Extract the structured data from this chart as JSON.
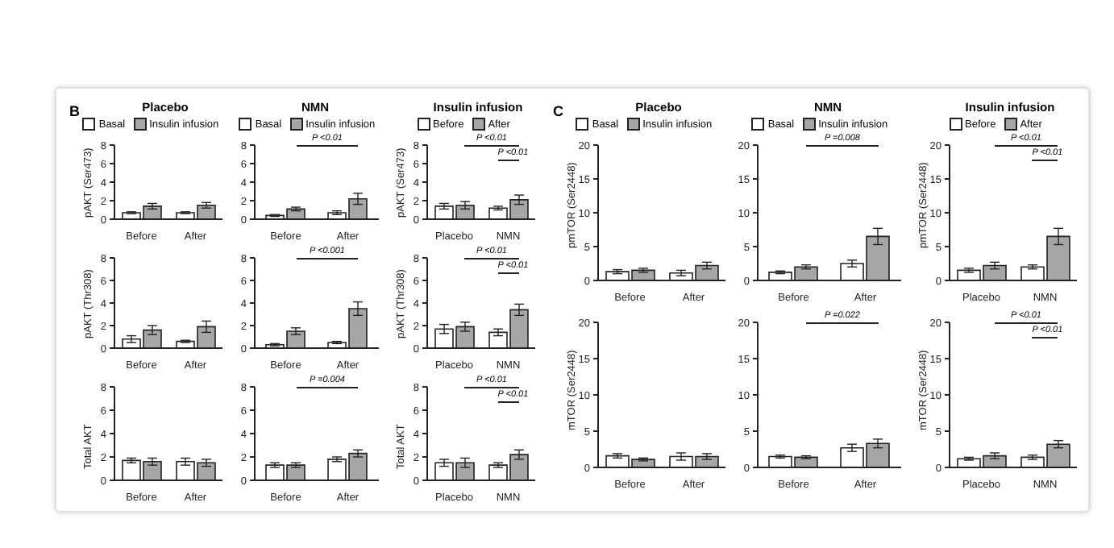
{
  "chart_data": [
    {
      "type": "bar",
      "title": "Placebo",
      "categories": [
        "Before",
        "After"
      ],
      "ylabel": "pAKT (Ser473)",
      "ylim": [
        0,
        8
      ],
      "yticks": [
        0,
        2,
        4,
        6,
        8
      ],
      "legend": "top",
      "annotations": [
        "B"
      ],
      "series": [
        {
          "name": "Basal",
          "color": "#ffffff",
          "values": [
            0.7,
            0.7
          ],
          "errors": [
            0.1,
            0.1
          ]
        },
        {
          "name": "Insulin infusion",
          "color": "#a6a6a6",
          "values": [
            1.4,
            1.5
          ],
          "errors": [
            0.3,
            0.3
          ]
        }
      ]
    },
    {
      "type": "bar",
      "title": "NMN",
      "categories": [
        "Before",
        "After"
      ],
      "ylim": [
        0,
        8
      ],
      "yticks": [
        0,
        2,
        4,
        6,
        8
      ],
      "legend": "top",
      "annotations": [
        "P <0.01"
      ],
      "series": [
        {
          "name": "Basal",
          "color": "#ffffff",
          "values": [
            0.4,
            0.7
          ],
          "errors": [
            0.1,
            0.2
          ]
        },
        {
          "name": "Insulin infusion",
          "color": "#a6a6a6",
          "values": [
            1.1,
            2.2
          ],
          "errors": [
            0.2,
            0.6
          ]
        }
      ]
    },
    {
      "type": "bar",
      "title": "Insulin infusion",
      "categories": [
        "Placebo",
        "NMN"
      ],
      "ylabel": "pAKT (Ser473)",
      "ylim": [
        0,
        8
      ],
      "yticks": [
        0,
        2,
        4,
        6,
        8
      ],
      "legend": "top",
      "annotations": [
        "P <0.01",
        "P <0.01"
      ],
      "series": [
        {
          "name": "Before",
          "color": "#ffffff",
          "values": [
            1.4,
            1.2
          ],
          "errors": [
            0.3,
            0.2
          ]
        },
        {
          "name": "After",
          "color": "#a6a6a6",
          "values": [
            1.5,
            2.1
          ],
          "errors": [
            0.4,
            0.5
          ]
        }
      ]
    },
    {
      "type": "bar",
      "categories": [
        "Before",
        "After"
      ],
      "ylabel": "pAKT (Thr308)",
      "ylim": [
        0,
        8
      ],
      "yticks": [
        0,
        2,
        4,
        6,
        8
      ],
      "series": [
        {
          "color": "#ffffff",
          "values": [
            0.8,
            0.6
          ],
          "errors": [
            0.3,
            0.1
          ]
        },
        {
          "color": "#a6a6a6",
          "values": [
            1.6,
            1.9
          ],
          "errors": [
            0.4,
            0.5
          ]
        }
      ]
    },
    {
      "type": "bar",
      "categories": [
        "Before",
        "After"
      ],
      "ylim": [
        0,
        8
      ],
      "yticks": [
        0,
        2,
        4,
        6,
        8
      ],
      "annotations": [
        "P <0.001"
      ],
      "series": [
        {
          "color": "#ffffff",
          "values": [
            0.3,
            0.5
          ],
          "errors": [
            0.1,
            0.1
          ]
        },
        {
          "color": "#a6a6a6",
          "values": [
            1.5,
            3.5
          ],
          "errors": [
            0.3,
            0.6
          ]
        }
      ]
    },
    {
      "type": "bar",
      "categories": [
        "Placebo",
        "NMN"
      ],
      "ylabel": "pAKT (Thr308)",
      "ylim": [
        0,
        8
      ],
      "yticks": [
        0,
        2,
        4,
        6,
        8
      ],
      "annotations": [
        "P <0.01",
        "P <0.01"
      ],
      "series": [
        {
          "color": "#ffffff",
          "values": [
            1.7,
            1.4
          ],
          "errors": [
            0.4,
            0.3
          ]
        },
        {
          "color": "#a6a6a6",
          "values": [
            1.9,
            3.4
          ],
          "errors": [
            0.4,
            0.5
          ]
        }
      ]
    },
    {
      "type": "bar",
      "categories": [
        "Before",
        "After"
      ],
      "ylabel": "Total AKT",
      "ylim": [
        0,
        8
      ],
      "yticks": [
        0,
        2,
        4,
        6,
        8
      ],
      "series": [
        {
          "color": "#ffffff",
          "values": [
            1.7,
            1.6
          ],
          "errors": [
            0.2,
            0.3
          ]
        },
        {
          "color": "#a6a6a6",
          "values": [
            1.6,
            1.5
          ],
          "errors": [
            0.3,
            0.3
          ]
        }
      ]
    },
    {
      "type": "bar",
      "categories": [
        "Before",
        "After"
      ],
      "ylim": [
        0,
        8
      ],
      "yticks": [
        0,
        2,
        4,
        6,
        8
      ],
      "annotations": [
        "P =0.004"
      ],
      "series": [
        {
          "color": "#ffffff",
          "values": [
            1.3,
            1.8
          ],
          "errors": [
            0.2,
            0.2
          ]
        },
        {
          "color": "#a6a6a6",
          "values": [
            1.3,
            2.3
          ],
          "errors": [
            0.2,
            0.3
          ]
        }
      ]
    },
    {
      "type": "bar",
      "categories": [
        "Placebo",
        "NMN"
      ],
      "ylabel": "Total AKT",
      "ylim": [
        0,
        8
      ],
      "yticks": [
        0,
        2,
        4,
        6,
        8
      ],
      "annotations": [
        "P <0.01",
        "P <0.01"
      ],
      "series": [
        {
          "color": "#ffffff",
          "values": [
            1.5,
            1.3
          ],
          "errors": [
            0.3,
            0.2
          ]
        },
        {
          "color": "#a6a6a6",
          "values": [
            1.5,
            2.2
          ],
          "errors": [
            0.4,
            0.4
          ]
        }
      ]
    },
    {
      "type": "bar",
      "title": "Placebo",
      "categories": [
        "Before",
        "After"
      ],
      "ylabel": "pmTOR (Ser2448)",
      "ylim": [
        0,
        20
      ],
      "yticks": [
        0,
        5,
        10,
        15,
        20
      ],
      "legend": "top",
      "annotations": [
        "C"
      ],
      "series": [
        {
          "name": "Basal",
          "color": "#ffffff",
          "values": [
            1.3,
            1.1
          ],
          "errors": [
            0.3,
            0.4
          ]
        },
        {
          "name": "Insulin infusion",
          "color": "#a6a6a6",
          "values": [
            1.5,
            2.2
          ],
          "errors": [
            0.3,
            0.5
          ]
        }
      ]
    },
    {
      "type": "bar",
      "title": "NMN",
      "categories": [
        "Before",
        "After"
      ],
      "ylim": [
        0,
        20
      ],
      "yticks": [
        0,
        5,
        10,
        15,
        20
      ],
      "legend": "top",
      "annotations": [
        "P =0.008"
      ],
      "series": [
        {
          "name": "Basal",
          "color": "#ffffff",
          "values": [
            1.2,
            2.5
          ],
          "errors": [
            0.2,
            0.5
          ]
        },
        {
          "name": "Insulin infusion",
          "color": "#a6a6a6",
          "values": [
            2.0,
            6.5
          ],
          "errors": [
            0.3,
            1.2
          ]
        }
      ]
    },
    {
      "type": "bar",
      "title": "Insulin infusion",
      "categories": [
        "Placebo",
        "NMN"
      ],
      "ylabel": "pmTOR (Ser2448)",
      "ylim": [
        0,
        20
      ],
      "yticks": [
        0,
        5,
        10,
        15,
        20
      ],
      "legend": "top",
      "annotations": [
        "P <0.01",
        "P <0.01"
      ],
      "series": [
        {
          "name": "Before",
          "color": "#ffffff",
          "values": [
            1.5,
            2.0
          ],
          "errors": [
            0.3,
            0.3
          ]
        },
        {
          "name": "After",
          "color": "#a6a6a6",
          "values": [
            2.2,
            6.5
          ],
          "errors": [
            0.5,
            1.2
          ]
        }
      ]
    },
    {
      "type": "bar",
      "categories": [
        "Before",
        "After"
      ],
      "ylabel": "mTOR (Ser2448)",
      "ylim": [
        0,
        20
      ],
      "yticks": [
        0,
        5,
        10,
        15,
        20
      ],
      "series": [
        {
          "color": "#ffffff",
          "values": [
            1.6,
            1.5
          ],
          "errors": [
            0.3,
            0.5
          ]
        },
        {
          "color": "#a6a6a6",
          "values": [
            1.1,
            1.5
          ],
          "errors": [
            0.2,
            0.4
          ]
        }
      ]
    },
    {
      "type": "bar",
      "categories": [
        "Before",
        "After"
      ],
      "ylim": [
        0,
        20
      ],
      "yticks": [
        0,
        5,
        10,
        15,
        20
      ],
      "annotations": [
        "P =0.022"
      ],
      "series": [
        {
          "color": "#ffffff",
          "values": [
            1.5,
            2.7
          ],
          "errors": [
            0.2,
            0.5
          ]
        },
        {
          "color": "#a6a6a6",
          "values": [
            1.4,
            3.3
          ],
          "errors": [
            0.2,
            0.6
          ]
        }
      ]
    },
    {
      "type": "bar",
      "categories": [
        "Placebo",
        "NMN"
      ],
      "ylabel": "mTOR (Ser2448)",
      "ylim": [
        0,
        20
      ],
      "yticks": [
        0,
        5,
        10,
        15,
        20
      ],
      "annotations": [
        "P <0.01",
        "P <0.01"
      ],
      "series": [
        {
          "color": "#ffffff",
          "values": [
            1.2,
            1.4
          ],
          "errors": [
            0.2,
            0.3
          ]
        },
        {
          "color": "#a6a6a6",
          "values": [
            1.6,
            3.2
          ],
          "errors": [
            0.4,
            0.5
          ]
        }
      ]
    }
  ]
}
